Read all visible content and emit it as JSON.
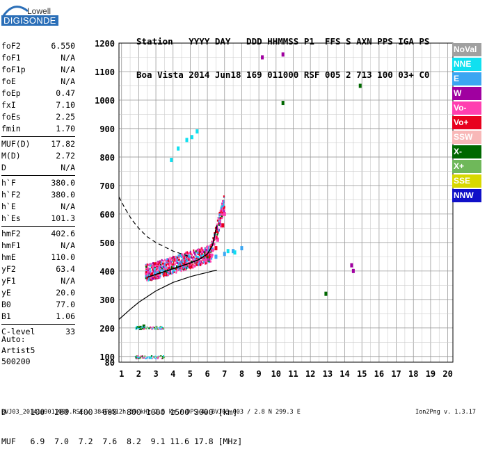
{
  "logo": {
    "top": "Lowell",
    "bottom": "DIGISONDE"
  },
  "header": {
    "line1": "Station   YYYY DAY   DDD HHMMSS P1  FFS S AXN PPS IGA PS",
    "line2": "Boa Vista 2014 Jun18 169 011000 RSF 005 2 713 100 03+ C0"
  },
  "params": [
    {
      "label": "foF2",
      "value": "6.550"
    },
    {
      "label": "foF1",
      "value": "N/A"
    },
    {
      "label": "foF1p",
      "value": "N/A"
    },
    {
      "label": "foE",
      "value": "N/A"
    },
    {
      "label": "foEp",
      "value": "0.47"
    },
    {
      "label": "fxI",
      "value": "7.10"
    },
    {
      "label": "foEs",
      "value": "2.25"
    },
    {
      "label": "fmin",
      "value": "1.70"
    },
    {
      "label": "MUF(D)",
      "value": "17.82",
      "sep": true
    },
    {
      "label": "M(D)",
      "value": "2.72"
    },
    {
      "label": "D",
      "value": "N/A"
    },
    {
      "label": "h`F",
      "value": "380.0",
      "sep": true
    },
    {
      "label": "h`F2",
      "value": "380.0"
    },
    {
      "label": "h`E",
      "value": "N/A"
    },
    {
      "label": "h`Es",
      "value": "101.3"
    },
    {
      "label": "hmF2",
      "value": "402.6",
      "sep": true
    },
    {
      "label": "hmF1",
      "value": "N/A"
    },
    {
      "label": "hmE",
      "value": "110.0"
    },
    {
      "label": "yF2",
      "value": "63.4"
    },
    {
      "label": "yF1",
      "value": "N/A"
    },
    {
      "label": "yE",
      "value": "20.0"
    },
    {
      "label": "B0",
      "value": "77.0"
    },
    {
      "label": "B1",
      "value": "1.06"
    },
    {
      "label": "C-level",
      "value": "33",
      "sep": true
    }
  ],
  "auto": {
    "label": "Auto:",
    "artist": "Artist5",
    "code": "500200"
  },
  "legend": [
    {
      "label": "NoVal",
      "color": "#a0a0a0"
    },
    {
      "label": "NNE",
      "color": "#10e0f0"
    },
    {
      "label": "E",
      "color": "#3ba6f2"
    },
    {
      "label": "W",
      "color": "#a000a0"
    },
    {
      "label": "Vo-",
      "color": "#ff3fb0"
    },
    {
      "label": "Vo+",
      "color": "#e8001e"
    },
    {
      "label": "SSW",
      "color": "#f8b8b8"
    },
    {
      "label": "X-",
      "color": "#006800"
    },
    {
      "label": "X+",
      "color": "#6fb85a"
    },
    {
      "label": "SSE",
      "color": "#d8d800"
    },
    {
      "label": "NNW",
      "color": "#1010c8"
    }
  ],
  "muf_table": {
    "d_line": "D     100  200  400  600  800 1000 1500 3000 [km]",
    "muf_line": "MUF   6.9  7.0  7.2  7.6  8.2  9.1 11.6 17.8 [MHz]"
  },
  "footer": "BVJ03_2014169011000.RSF / 384Fx512h 50 kHz 2.5 km / DPS-4D BVJ03 003 / 2.8 N 299.3 E",
  "version": "Ion2Png v. 1.3.17",
  "chart_data": {
    "type": "scatter",
    "x_ticks": [
      1,
      2,
      3,
      4,
      5,
      6,
      7,
      8,
      9,
      10,
      11,
      12,
      13,
      14,
      15,
      16,
      17,
      18,
      19,
      20
    ],
    "y_ticks": [
      80,
      100,
      200,
      300,
      400,
      500,
      600,
      700,
      800,
      900,
      1000,
      1100,
      1200
    ],
    "xlim": [
      0.85,
      20.3
    ],
    "ylim": [
      80,
      1200
    ],
    "grid": true,
    "legend_position": "right",
    "series": [
      {
        "name": "Vo-",
        "x": [
          2.5,
          3.0,
          3.5,
          4.0,
          4.5,
          5.0,
          5.5,
          6.0,
          6.3,
          6.6,
          6.8,
          7.0
        ],
        "y": [
          395,
          400,
          410,
          415,
          420,
          425,
          435,
          455,
          475,
          510,
          560,
          600
        ]
      },
      {
        "name": "Vo+",
        "x": [
          2.6,
          3.2,
          3.8,
          4.4,
          5.0,
          5.6,
          6.2,
          6.5,
          6.9
        ],
        "y": [
          390,
          395,
          405,
          412,
          420,
          430,
          450,
          480,
          560
        ]
      },
      {
        "name": "E",
        "x": [
          3.5,
          4.5,
          5.5,
          6.5,
          7.0,
          7.5,
          8.0
        ],
        "y": [
          420,
          430,
          440,
          450,
          460,
          470,
          480
        ]
      },
      {
        "name": "NNE",
        "x": [
          3.9,
          4.3,
          4.8,
          5.1,
          5.4,
          7.2,
          7.6
        ],
        "y": [
          790,
          830,
          860,
          870,
          890,
          470,
          465
        ]
      },
      {
        "name": "W",
        "x": [
          9.2,
          10.4,
          14.4,
          14.5
        ],
        "y": [
          1150,
          1160,
          420,
          400
        ]
      },
      {
        "name": "X-",
        "x": [
          2.1,
          2.3,
          12.9,
          10.4,
          14.9
        ],
        "y": [
          200,
          205,
          320,
          990,
          1050
        ]
      }
    ],
    "profile_curve": {
      "x": [
        0.85,
        1.5,
        2.0,
        2.5,
        3.0,
        3.5,
        4.0,
        4.5,
        5.0,
        5.5,
        6.0,
        6.3,
        6.55
      ],
      "y": [
        230,
        265,
        290,
        310,
        330,
        345,
        360,
        370,
        380,
        388,
        395,
        400,
        402
      ]
    },
    "trace_curve": {
      "x": [
        2.5,
        3.0,
        3.5,
        4.0,
        4.5,
        5.0,
        5.5,
        6.0,
        6.3,
        6.55
      ],
      "y": [
        378,
        388,
        398,
        408,
        418,
        428,
        440,
        460,
        490,
        560
      ]
    },
    "dashed_curve": {
      "x": [
        0.85,
        1.2,
        1.6,
        2.0,
        2.5,
        3.0,
        3.5,
        4.0,
        4.5,
        5.0
      ],
      "y": [
        660,
        620,
        580,
        550,
        520,
        500,
        485,
        470,
        460,
        450
      ]
    }
  }
}
